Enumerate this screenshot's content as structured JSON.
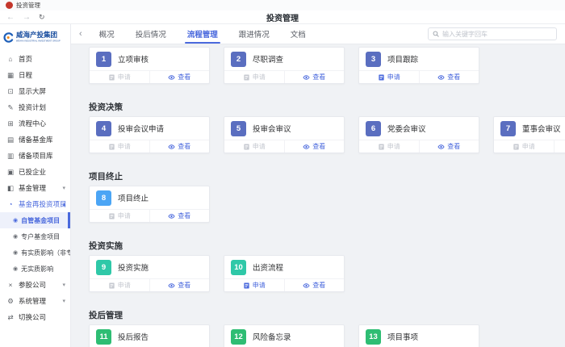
{
  "colors": {
    "accent": "#4a69dd",
    "badge_indigo": "#5a6ec0",
    "badge_sky": "#4ba5f5",
    "badge_teal": "#2fc8a8",
    "badge_green": "#2ebd73",
    "disabled_text": "#c6c9d0",
    "logo_blue": "#1b4fa0",
    "favicon_red": "#c4372c"
  },
  "browser": {
    "tab_title": "投资管理",
    "window_title": "投资管理",
    "icons": {
      "back": "←",
      "forward": "→",
      "refresh": "↻"
    }
  },
  "sidebar": {
    "logo_text": "威海产投集团",
    "logo_subtext": "WEIHAI INDUSTRIAL INVESTMENT GROUP",
    "items": [
      {
        "label": "首页",
        "icon": "home-icon"
      },
      {
        "label": "日程",
        "icon": "calendar-icon"
      },
      {
        "label": "显示大屏",
        "icon": "monitor-icon"
      },
      {
        "label": "投资计划",
        "icon": "pen-icon"
      },
      {
        "label": "流程中心",
        "icon": "flow-icon"
      },
      {
        "label": "储备基金库",
        "icon": "library-icon"
      },
      {
        "label": "储备项目库",
        "icon": "folder-icon"
      },
      {
        "label": "已投企业",
        "icon": "briefcase-icon"
      },
      {
        "label": "基金管理",
        "icon": "chart-icon",
        "caret": "down"
      },
      {
        "label": "基金再投资项目",
        "icon": "pie-icon",
        "caret": "up",
        "active": true,
        "children": [
          {
            "label": "自管基金项目",
            "selected": true
          },
          {
            "label": "专户基金项目"
          },
          {
            "label": "有实质影响（非专户"
          },
          {
            "label": "无实质影响"
          }
        ]
      },
      {
        "label": "参股公司",
        "icon": "share-icon",
        "caret": "down"
      },
      {
        "label": "系统管理",
        "icon": "gear-icon",
        "caret": "down"
      },
      {
        "label": "切换公司",
        "icon": "switch-icon"
      }
    ]
  },
  "header": {
    "back_chevron": "‹",
    "tabs": [
      {
        "label": "概况"
      },
      {
        "label": "投后情况"
      },
      {
        "label": "流程管理",
        "active": true
      },
      {
        "label": "跟进情况"
      },
      {
        "label": "文档"
      }
    ],
    "search_placeholder": "输入关键字回车"
  },
  "board": {
    "actions": {
      "apply": "申请",
      "view": "查看"
    },
    "sections": [
      {
        "title": "",
        "cards": [
          {
            "num": "1",
            "title": "立项审核",
            "badge": "badge_indigo",
            "apply_enabled": false
          },
          {
            "num": "2",
            "title": "尽职调查",
            "badge": "badge_indigo",
            "apply_enabled": false
          },
          {
            "num": "3",
            "title": "项目跟踪",
            "badge": "badge_indigo",
            "apply_enabled": true
          }
        ]
      },
      {
        "title": "投资决策",
        "cards": [
          {
            "num": "4",
            "title": "投审会议申请",
            "badge": "badge_indigo",
            "apply_enabled": false
          },
          {
            "num": "5",
            "title": "投审会审议",
            "badge": "badge_indigo",
            "apply_enabled": false
          },
          {
            "num": "6",
            "title": "党委会审议",
            "badge": "badge_indigo",
            "apply_enabled": false
          },
          {
            "num": "7",
            "title": "董事会审议",
            "badge": "badge_indigo",
            "apply_enabled": false
          }
        ]
      },
      {
        "title": "项目终止",
        "cards": [
          {
            "num": "8",
            "title": "项目终止",
            "badge": "badge_sky",
            "apply_enabled": false
          }
        ]
      },
      {
        "title": "投资实施",
        "cards": [
          {
            "num": "9",
            "title": "投资实施",
            "badge": "badge_teal",
            "apply_enabled": false
          },
          {
            "num": "10",
            "title": "出资流程",
            "badge": "badge_teal",
            "apply_enabled": true
          }
        ]
      },
      {
        "title": "投后管理",
        "cards": [
          {
            "num": "11",
            "title": "投后报告",
            "badge": "badge_green",
            "apply_enabled": false
          },
          {
            "num": "12",
            "title": "风险备忘录",
            "badge": "badge_green",
            "apply_enabled": false
          },
          {
            "num": "13",
            "title": "项目事项",
            "badge": "badge_green",
            "apply_enabled": false
          }
        ]
      }
    ]
  }
}
